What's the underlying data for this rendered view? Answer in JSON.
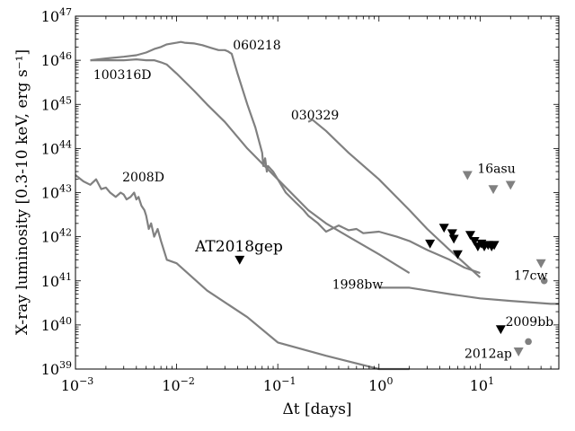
{
  "chart_data": {
    "type": "line",
    "xlabel": "Δt [days]",
    "ylabel": "X-ray luminosity [0.3-10 keV, erg s⁻¹]",
    "xscale": "log",
    "yscale": "log",
    "xlim": [
      0.001,
      60
    ],
    "ylim": [
      1e+39,
      1e+47
    ],
    "grid": false,
    "x_tick_labels": [
      {
        "base": "10",
        "exp": "−3"
      },
      {
        "base": "10",
        "exp": "−2"
      },
      {
        "base": "10",
        "exp": "−1"
      },
      {
        "base": "10",
        "exp": "0"
      },
      {
        "base": "10",
        "exp": "1"
      }
    ],
    "y_tick_labels": [
      {
        "base": "10",
        "exp": "39"
      },
      {
        "base": "10",
        "exp": "40"
      },
      {
        "base": "10",
        "exp": "41"
      },
      {
        "base": "10",
        "exp": "42"
      },
      {
        "base": "10",
        "exp": "43"
      },
      {
        "base": "10",
        "exp": "44"
      },
      {
        "base": "10",
        "exp": "45"
      },
      {
        "base": "10",
        "exp": "46"
      },
      {
        "base": "10",
        "exp": "47"
      }
    ],
    "colors": {
      "curve": "#808080",
      "detection": "#000000"
    },
    "series": [
      {
        "label": "060218",
        "x": [
          0.0014,
          0.002,
          0.003,
          0.004,
          0.005,
          0.006,
          0.007,
          0.008,
          0.009,
          0.01,
          0.011,
          0.012,
          0.015,
          0.018,
          0.022,
          0.026,
          0.03,
          0.032,
          0.035,
          0.04,
          0.05,
          0.06,
          0.07,
          0.072,
          0.075,
          0.078,
          0.08,
          0.09,
          0.1,
          0.12,
          0.15,
          0.18,
          0.2,
          0.25,
          0.3,
          0.4,
          0.5,
          0.6,
          0.7,
          1.0,
          1.5,
          2.0,
          3.0,
          5.0,
          7.0,
          10.0
        ],
        "y": [
          1e+46,
          1.1e+46,
          1.2e+46,
          1.3e+46,
          1.5e+46,
          1.8e+46,
          2e+46,
          2.3e+46,
          2.4e+46,
          2.5e+46,
          2.6e+46,
          2.5e+46,
          2.4e+46,
          2.2e+46,
          1.9e+46,
          1.7e+46,
          1.7e+46,
          1.6e+46,
          1.4e+46,
          5e+45,
          1e+45,
          3e+44,
          8e+43,
          4e+43,
          6e+43,
          3e+43,
          4e+43,
          3e+43,
          2e+43,
          1e+43,
          6e+42,
          4e+42,
          3e+42,
          2e+42,
          1.3e+42,
          1.8e+42,
          1.4e+42,
          1.5e+42,
          1.2e+42,
          1.3e+42,
          1e+42,
          8e+41,
          5e+41,
          3e+41,
          2e+41,
          1.5e+41
        ]
      },
      {
        "label": "100316D",
        "x": [
          0.0014,
          0.002,
          0.003,
          0.004,
          0.005,
          0.006,
          0.007,
          0.008,
          0.01,
          0.015,
          0.02,
          0.03,
          0.05,
          0.1,
          0.2,
          0.3,
          0.5,
          1.0,
          2.0
        ],
        "y": [
          1e+46,
          1e+46,
          1e+46,
          1.05e+46,
          1e+46,
          1e+46,
          9e+45,
          8e+45,
          5e+45,
          2e+45,
          1e+45,
          4e+44,
          1e+44,
          2e+43,
          4e+42,
          2e+42,
          1e+42,
          4e+41,
          1.5e+41
        ]
      },
      {
        "label": "030329",
        "x": [
          0.2,
          0.22,
          0.3,
          0.5,
          1.0,
          2.0,
          3.0,
          5.0,
          10.0
        ],
        "y": [
          4e+44,
          4.5e+44,
          2.5e+44,
          8e+43,
          2e+43,
          4e+42,
          1.5e+42,
          5e+41,
          1.2e+41
        ]
      },
      {
        "label": "2008D",
        "x": [
          0.001,
          0.0012,
          0.0014,
          0.0016,
          0.0018,
          0.002,
          0.0022,
          0.0025,
          0.0028,
          0.003,
          0.0032,
          0.0035,
          0.0038,
          0.004,
          0.0042,
          0.0045,
          0.0048,
          0.005,
          0.0053,
          0.0056,
          0.006,
          0.0065,
          0.007,
          0.008,
          0.01,
          0.02,
          0.05,
          0.1,
          0.3,
          1.0,
          2.0
        ],
        "y": [
          2.5e+43,
          1.8e+43,
          1.5e+43,
          2e+43,
          1.2e+43,
          1.3e+43,
          1e+43,
          8e+42,
          1e+43,
          9e+42,
          7e+42,
          8e+42,
          1e+43,
          7e+42,
          8e+42,
          5e+42,
          4e+42,
          3e+42,
          1.5e+42,
          2e+42,
          1e+42,
          1.5e+42,
          8e+41,
          3e+41,
          2.5e+41,
          6e+40,
          1.5e+40,
          4e+39,
          2e+39,
          1e+39,
          5e+38
        ]
      },
      {
        "label": "1998bw",
        "x": [
          1.0,
          2.0,
          5.0,
          10.0,
          20.0,
          50.0,
          60.0
        ],
        "y": [
          7e+40,
          7e+40,
          5e+40,
          4e+40,
          3.5e+40,
          3e+40,
          3e+40
        ]
      }
    ],
    "detections": {
      "label": "AT2018gep",
      "marker": "triangle-down",
      "points": [
        {
          "x": 0.042,
          "y": 3e+41
        },
        {
          "x": 3.2,
          "y": 7e+41
        },
        {
          "x": 4.4,
          "y": 1.6e+42
        },
        {
          "x": 5.3,
          "y": 1.2e+42
        },
        {
          "x": 5.5,
          "y": 9e+41
        },
        {
          "x": 6.0,
          "y": 4e+41
        },
        {
          "x": 8.0,
          "y": 1.1e+42
        },
        {
          "x": 8.8,
          "y": 8e+41
        },
        {
          "x": 9.5,
          "y": 6e+41
        },
        {
          "x": 10.3,
          "y": 7e+41
        },
        {
          "x": 11.0,
          "y": 6e+41
        },
        {
          "x": 12.0,
          "y": 6.5e+41
        },
        {
          "x": 13.0,
          "y": 6e+41
        },
        {
          "x": 13.8,
          "y": 6.5e+41
        }
      ]
    },
    "other_points": [
      {
        "label": "16asu",
        "marker": "triangle-down",
        "points": [
          {
            "x": 7.5,
            "y": 2.5e+43
          },
          {
            "x": 13.5,
            "y": 1.2e+43
          },
          {
            "x": 20.0,
            "y": 1.5e+43
          }
        ]
      },
      {
        "label": "17cw",
        "marker": "circle",
        "points": [
          {
            "x": 43.0,
            "y": 1e+41
          }
        ]
      },
      {
        "label": "17cw-limit",
        "marker": "triangle-down",
        "points": [
          {
            "x": 40.0,
            "y": 2.5e+41
          }
        ]
      },
      {
        "label": "2009bb",
        "marker": "triangle-down",
        "points": [
          {
            "x": 16.0,
            "y": 8e+39
          }
        ]
      },
      {
        "label": "2012ap",
        "marker": "circle",
        "points": [
          {
            "x": 30.0,
            "y": 4.2e+39
          }
        ]
      },
      {
        "label": "2012ap-limit",
        "marker": "triangle-down",
        "points": [
          {
            "x": 24.0,
            "y": 2.5e+39
          }
        ]
      }
    ],
    "annotations": [
      {
        "text": "060218",
        "x": 0.036,
        "y": 1.75e+46
      },
      {
        "text": "100316D",
        "x": 0.0015,
        "y": 3.8e+45
      },
      {
        "text": "030329",
        "x": 0.135,
        "y": 4.6e+44
      },
      {
        "text": "16asu",
        "x": 9.4,
        "y": 2.8e+43
      },
      {
        "text": "2008D",
        "x": 0.0029,
        "y": 1.8e+43
      },
      {
        "text": "AT2018gep",
        "x": 0.0152,
        "y": 4.6e+41,
        "big": true
      },
      {
        "text": "17cw",
        "x": 21.5,
        "y": 1.05e+41
      },
      {
        "text": "1998bw",
        "x": 0.345,
        "y": 6.7e+40
      },
      {
        "text": "2009bb",
        "x": 17.8,
        "y": 9.4e+39
      },
      {
        "text": "2012ap",
        "x": 7.0,
        "y": 1.8e+39
      }
    ]
  }
}
